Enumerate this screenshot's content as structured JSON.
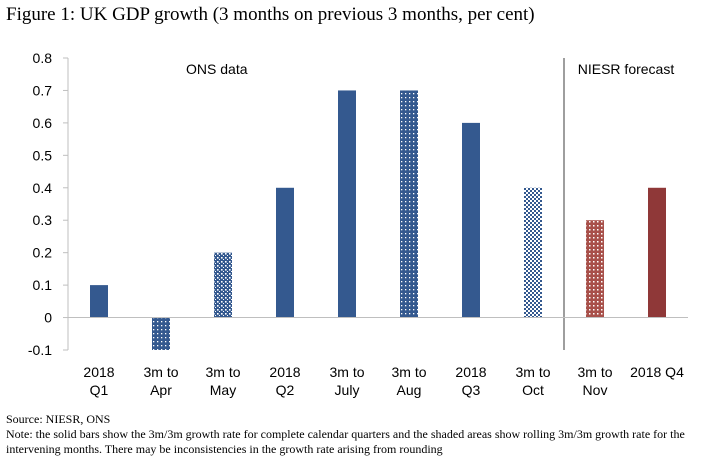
{
  "figure": {
    "title": "Figure 1: UK GDP growth (3 months on previous 3 months, per cent)",
    "source": "Source: NIESR, ONS",
    "note": "Note: the solid bars show the 3m/3m growth rate for complete calendar quarters and the shaded areas show rolling 3m/3m growth rate for the intervening months. There may be inconsistencies in the growth rate arising from rounding"
  },
  "colors": {
    "ons": "#34598f",
    "niesr_monthly": "#a8504a",
    "niesr_quarter": "#8f3838",
    "axis": "#bfbfbf",
    "divider": "#7f7f7f"
  },
  "chart_data": {
    "type": "bar",
    "title": "",
    "xlabel": "",
    "ylabel": "",
    "ylim": [
      -0.1,
      0.8
    ],
    "yticks": [
      "-0.1",
      "0",
      "0.1",
      "0.2",
      "0.3",
      "0.4",
      "0.5",
      "0.6",
      "0.7",
      "0.8"
    ],
    "grid": false,
    "annotations": [
      "ONS data",
      "NIESR forecast"
    ],
    "categories": [
      [
        "2018",
        "Q1"
      ],
      [
        "3m to",
        "Apr"
      ],
      [
        "3m to",
        "May"
      ],
      [
        "2018",
        "Q2"
      ],
      [
        "3m to",
        "July"
      ],
      [
        "3m to",
        "Aug"
      ],
      [
        "2018",
        "Q3"
      ],
      [
        "3m to",
        "Oct"
      ],
      [
        "3m to",
        "Nov"
      ],
      [
        "2018 Q4"
      ]
    ],
    "values": [
      0.1,
      -0.1,
      0.2,
      0.4,
      0.7,
      0.7,
      0.6,
      0.4,
      0.3,
      0.4
    ],
    "styles": [
      "solid",
      "dotted-dense",
      "dotted",
      "solid",
      "solid",
      "dotted-dense",
      "solid",
      "dotted-light",
      "dotted-red",
      "solid-red"
    ]
  }
}
